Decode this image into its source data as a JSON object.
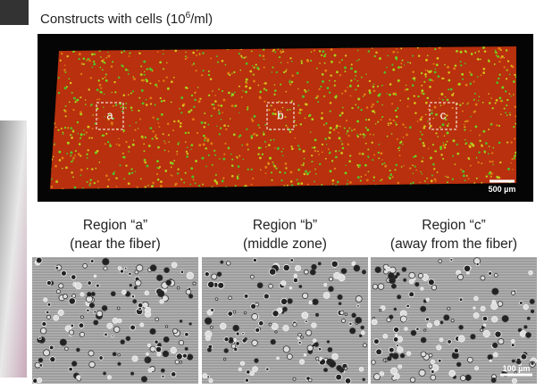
{
  "title": {
    "prefix": "Constructs with cells (10",
    "exponent": "6",
    "suffix": "/ml)"
  },
  "overview": {
    "boxes": [
      "a",
      "b",
      "c"
    ],
    "scale_bar": "500 µm"
  },
  "regions": [
    {
      "name": "Region “a”",
      "description": "(near the fiber)"
    },
    {
      "name": "Region “b”",
      "description": "(middle zone)"
    },
    {
      "name": "Region “c”",
      "description": "(away from the fiber)"
    }
  ],
  "detail_scale_bar": "100 µm"
}
